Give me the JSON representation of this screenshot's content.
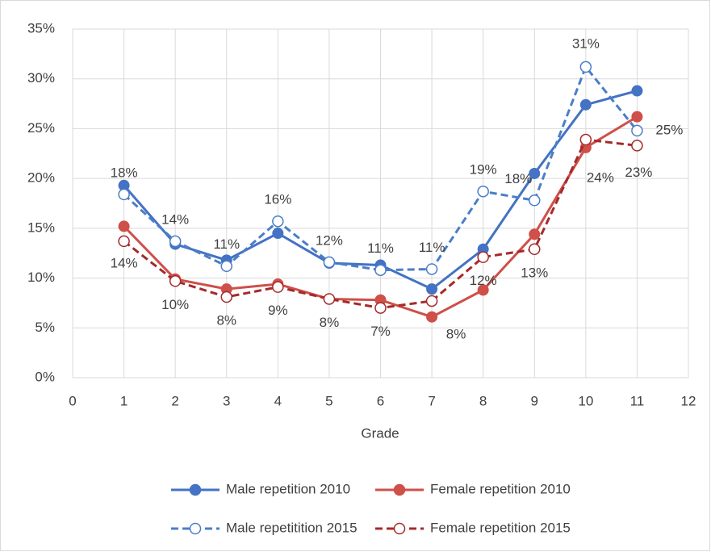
{
  "chart_data": {
    "type": "line",
    "x_label": "Grade",
    "x": [
      1,
      2,
      3,
      4,
      5,
      6,
      7,
      8,
      9,
      10,
      11
    ],
    "xlim": [
      0,
      12
    ],
    "xticks": [
      0,
      1,
      2,
      3,
      4,
      5,
      6,
      7,
      8,
      9,
      10,
      11,
      12
    ],
    "ylim": [
      0,
      35
    ],
    "yticks": [
      {
        "value": 0,
        "label": "0%"
      },
      {
        "value": 5,
        "label": "5%"
      },
      {
        "value": 10,
        "label": "10%"
      },
      {
        "value": 15,
        "label": "15%"
      },
      {
        "value": 20,
        "label": "20%"
      },
      {
        "value": 25,
        "label": "25%"
      },
      {
        "value": 30,
        "label": "30%"
      },
      {
        "value": 35,
        "label": "35%"
      }
    ],
    "grid": true,
    "legend": "bottom",
    "series": [
      {
        "name": "Male repetition 2010",
        "color": "#4472c4",
        "line_style": "solid",
        "marker": "filled",
        "values": [
          19.3,
          13.4,
          11.8,
          14.5,
          11.5,
          11.3,
          8.9,
          12.9,
          20.5,
          27.4,
          28.8
        ]
      },
      {
        "name": "Female repetition 2010",
        "color": "#cf4f49",
        "line_style": "solid",
        "marker": "filled",
        "values": [
          15.2,
          9.9,
          8.9,
          9.4,
          7.9,
          7.8,
          6.1,
          8.8,
          14.4,
          23.1,
          26.2
        ]
      },
      {
        "name": "Male repetitition 2015",
        "color": "#4a7ec8",
        "line_style": "dashed",
        "marker": "open",
        "values": [
          18.4,
          13.7,
          11.2,
          15.7,
          11.6,
          10.8,
          10.9,
          18.7,
          17.8,
          31.2,
          24.8
        ],
        "value_labels": [
          "18%",
          "14%",
          "11%",
          "16%",
          "12%",
          "11%",
          "11%",
          "19%",
          "18%",
          "31%",
          "25%"
        ]
      },
      {
        "name": "Female repetition 2015",
        "color": "#a52a2a",
        "line_style": "dashed",
        "marker": "open",
        "values": [
          13.7,
          9.7,
          8.1,
          9.1,
          7.9,
          7.0,
          7.7,
          12.1,
          12.9,
          23.9,
          23.3
        ],
        "value_labels": [
          "14%",
          "10%",
          "8%",
          "9%",
          "8%",
          "7%",
          "8%",
          "12%",
          "13%",
          "24%",
          "23%"
        ]
      }
    ]
  }
}
